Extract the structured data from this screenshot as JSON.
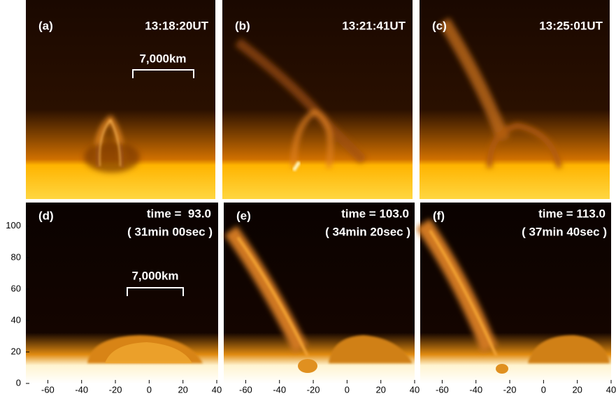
{
  "top_row": [
    {
      "label": "(a)",
      "time": "13:18:20UT"
    },
    {
      "label": "(b)",
      "time": "13:21:41UT"
    },
    {
      "label": "(c)",
      "time": "13:25:01UT"
    }
  ],
  "top_scale_bar": "7,000km",
  "bottom_row": [
    {
      "label": "(d)",
      "time": "time =  93.0",
      "duration": "( 31min 00sec )"
    },
    {
      "label": "(e)",
      "time": "time = 103.0",
      "duration": "( 34min 20sec )"
    },
    {
      "label": "(f)",
      "time": "time = 113.0",
      "duration": "( 37min 40sec )"
    }
  ],
  "bottom_scale_bar": "7,000km",
  "y_axis": {
    "ylim": [
      0,
      115
    ],
    "yticks": [
      0,
      20,
      40,
      60,
      80,
      100
    ]
  },
  "x_axis": {
    "xlim": [
      -73,
      40
    ],
    "xticks": [
      -60,
      -40,
      -20,
      0,
      20,
      40
    ]
  }
}
